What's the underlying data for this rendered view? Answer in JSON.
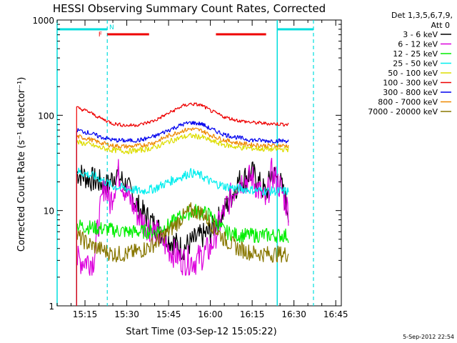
{
  "chart_data": {
    "type": "line",
    "title": "HESSI Observing Summary Count Rates, Corrected",
    "xlabel": "Start Time (03-Sep-12 15:05:22)",
    "ylabel": "Corrected Count Rate (s⁻¹ detector⁻¹)",
    "yscale": "log",
    "ylim": [
      1,
      1000
    ],
    "xlim_minutes": [
      15.05,
      16.45
    ],
    "x_ticks": [
      "15:15",
      "15:30",
      "15:45",
      "16:00",
      "16:15",
      "16:30",
      "16:45"
    ],
    "y_ticks": [
      "1",
      "10",
      "100",
      "1000"
    ],
    "legend_header": [
      "Det 1,3,5,6,7,9,",
      "Att 0"
    ],
    "legend_position": "right",
    "timestamp": "5-Sep-2012 22:54",
    "flags": {
      "F_label": "F",
      "N_label": "N",
      "F_color": "#ee0000",
      "N_color": "#00dddd",
      "F_segments": [
        [
          "15:23",
          "15:38"
        ],
        [
          "16:02",
          "16:20"
        ]
      ],
      "N_segments": [
        [
          "15:05",
          "15:23"
        ],
        [
          "16:24",
          "16:37"
        ]
      ]
    },
    "vertical_markers": {
      "solid": [
        "15:05",
        "16:24"
      ],
      "dashed": [
        "15:23",
        "16:37"
      ]
    },
    "series": [
      {
        "name": "3 - 6 keV",
        "color": "#000000",
        "t": [
          "15:12",
          "15:16",
          "15:20",
          "15:23",
          "15:26",
          "15:30",
          "15:35",
          "15:40",
          "15:45",
          "15:50",
          "15:55",
          "16:00",
          "16:05",
          "16:10",
          "16:15",
          "16:20",
          "16:22",
          "16:25",
          "16:28"
        ],
        "v": [
          25,
          22,
          20,
          18,
          25,
          18,
          10,
          7,
          5,
          4,
          5,
          6,
          10,
          20,
          25,
          15,
          25,
          20,
          10
        ]
      },
      {
        "name": "6 - 12 keV",
        "color": "#dd00dd",
        "t": [
          "15:12",
          "15:14",
          "15:18",
          "15:22",
          "15:24",
          "15:27",
          "15:30",
          "15:35",
          "15:40",
          "15:45",
          "15:50",
          "15:55",
          "16:00",
          "16:05",
          "16:10",
          "16:15",
          "16:20",
          "16:22",
          "16:25",
          "16:28"
        ],
        "v": [
          3,
          3,
          3,
          20,
          12,
          25,
          15,
          8,
          6,
          4,
          3,
          3,
          4,
          10,
          20,
          22,
          12,
          25,
          18,
          10
        ]
      },
      {
        "name": "12 - 25 keV",
        "color": "#00ee00",
        "t": [
          "15:12",
          "15:20",
          "15:30",
          "15:40",
          "15:45",
          "15:50",
          "15:55",
          "16:00",
          "16:05",
          "16:10",
          "16:20",
          "16:28"
        ],
        "v": [
          7,
          6.5,
          6,
          6,
          7,
          9,
          10,
          9,
          6,
          5.5,
          5.5,
          5.5
        ]
      },
      {
        "name": "25 - 50 keV",
        "color": "#00eeee",
        "t": [
          "15:12",
          "15:16",
          "15:20",
          "15:25",
          "15:30",
          "15:35",
          "15:40",
          "15:45",
          "15:50",
          "15:53",
          "15:57",
          "16:00",
          "16:05",
          "16:10",
          "16:15",
          "16:20",
          "16:25",
          "16:28"
        ],
        "v": [
          26,
          24,
          22,
          18,
          17,
          16,
          17,
          20,
          23,
          25,
          23,
          20,
          18,
          17,
          16.5,
          16,
          16,
          16
        ]
      },
      {
        "name": "50 - 100 keV",
        "color": "#dddd00",
        "t": [
          "15:12",
          "15:16",
          "15:20",
          "15:25",
          "15:30",
          "15:35",
          "15:40",
          "15:45",
          "15:50",
          "15:53",
          "15:57",
          "16:00",
          "16:05",
          "16:10",
          "16:15",
          "16:20",
          "16:25",
          "16:28"
        ],
        "v": [
          52,
          50,
          46,
          43,
          42,
          43,
          46,
          53,
          59,
          61,
          59,
          54,
          49,
          46,
          45,
          44,
          44,
          44
        ]
      },
      {
        "name": "100 - 300 keV",
        "color": "#ee0000",
        "t": [
          "15:12",
          "15:16",
          "15:20",
          "15:25",
          "15:30",
          "15:35",
          "15:40",
          "15:45",
          "15:50",
          "15:53",
          "15:57",
          "16:00",
          "16:05",
          "16:10",
          "16:15",
          "16:20",
          "16:25",
          "16:28"
        ],
        "v": [
          120,
          110,
          95,
          82,
          78,
          80,
          88,
          105,
          125,
          132,
          127,
          112,
          96,
          88,
          84,
          82,
          81,
          80
        ]
      },
      {
        "name": "300 - 800 keV",
        "color": "#0000ee",
        "t": [
          "15:12",
          "15:16",
          "15:20",
          "15:25",
          "15:30",
          "15:35",
          "15:40",
          "15:45",
          "15:50",
          "15:53",
          "15:57",
          "16:00",
          "16:05",
          "16:10",
          "16:15",
          "16:20",
          "16:25",
          "16:28"
        ],
        "v": [
          70,
          66,
          60,
          55,
          54,
          55,
          60,
          70,
          80,
          84,
          81,
          72,
          63,
          58,
          55,
          54,
          54,
          54
        ]
      },
      {
        "name": "800 - 7000 keV",
        "color": "#ee8800",
        "t": [
          "15:12",
          "15:16",
          "15:20",
          "15:25",
          "15:30",
          "15:35",
          "15:40",
          "15:45",
          "15:50",
          "15:53",
          "15:57",
          "16:00",
          "16:05",
          "16:10",
          "16:15",
          "16:20",
          "16:25",
          "16:28"
        ],
        "v": [
          60,
          57,
          52,
          48,
          47,
          48,
          52,
          61,
          69,
          72,
          69,
          62,
          55,
          51,
          49,
          48,
          48,
          48
        ]
      },
      {
        "name": "7000 - 20000 keV",
        "color": "#887700",
        "t": [
          "15:12",
          "15:16",
          "15:20",
          "15:25",
          "15:30",
          "15:35",
          "15:40",
          "15:45",
          "15:50",
          "15:53",
          "15:57",
          "16:00",
          "16:05",
          "16:10",
          "16:15",
          "16:20",
          "16:25",
          "16:28"
        ],
        "v": [
          5.5,
          4.5,
          4,
          3.5,
          3.5,
          3.8,
          4.5,
          6,
          8.5,
          10,
          9.5,
          7.5,
          5,
          4,
          3.6,
          3.5,
          3.5,
          3.5
        ]
      }
    ]
  }
}
